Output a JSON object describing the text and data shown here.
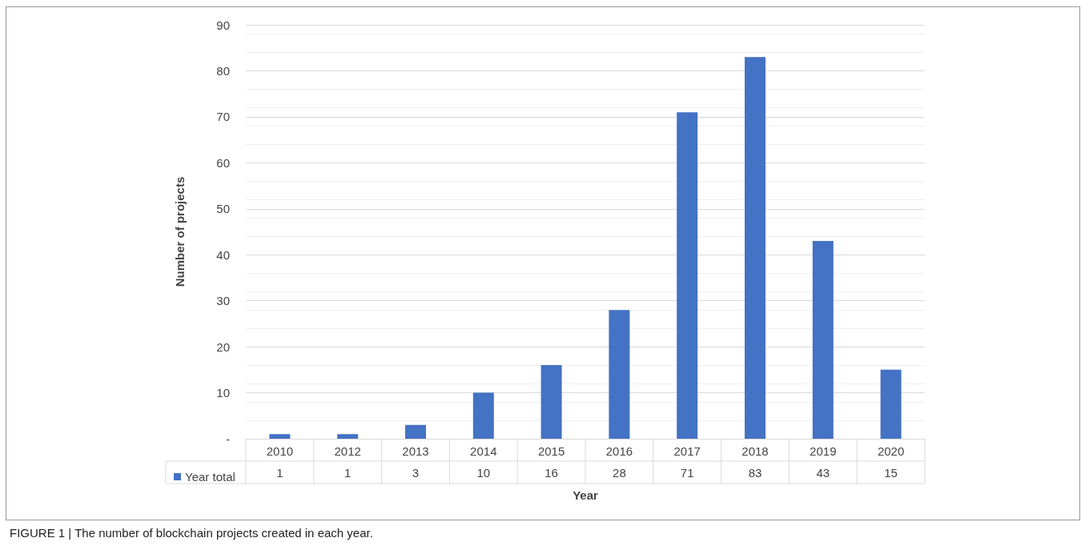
{
  "chart_data": {
    "type": "bar",
    "xlabel": "Year",
    "ylabel": "Number of projects",
    "categories": [
      "2010",
      "2012",
      "2013",
      "2014",
      "2015",
      "2016",
      "2017",
      "2018",
      "2019",
      "2020"
    ],
    "series": [
      {
        "name": "Year total",
        "color": "#4472c4",
        "values": [
          1,
          1,
          3,
          10,
          16,
          28,
          71,
          83,
          43,
          15
        ]
      }
    ],
    "ylim": [
      0,
      90
    ],
    "yticks": [
      {
        "value": 0,
        "label": "-"
      },
      10,
      20,
      30,
      40,
      50,
      60,
      70,
      80,
      90
    ],
    "grid": true,
    "legend": "bottom left",
    "data_labels": true,
    "annotations": [
      "FIGURE 1 | The number of blockchain projects created in each year."
    ]
  }
}
